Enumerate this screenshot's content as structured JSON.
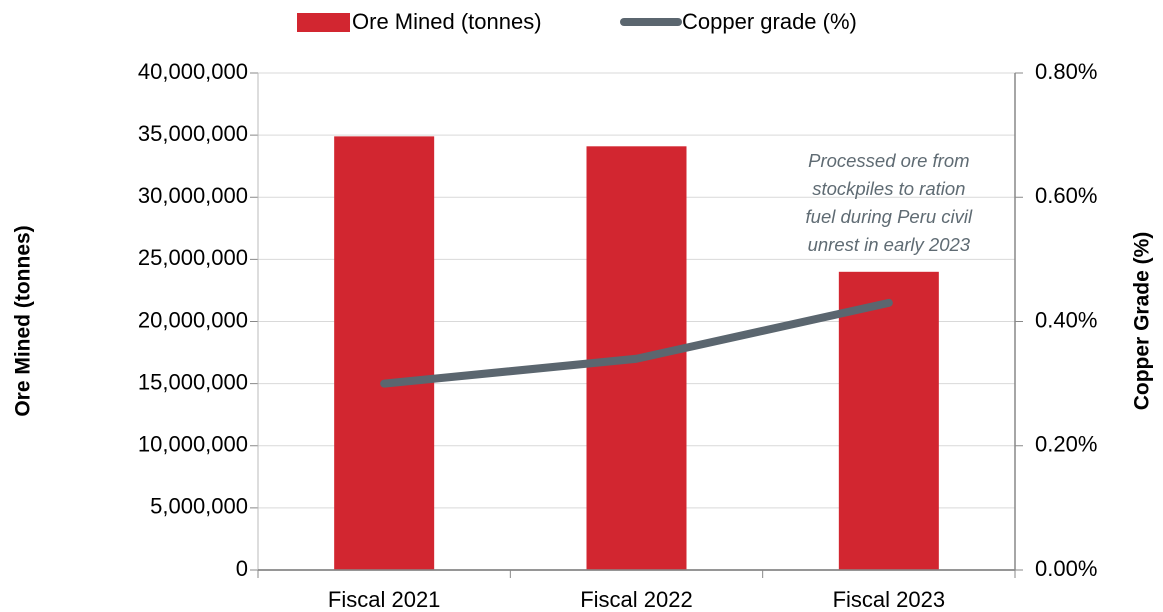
{
  "chart_data": {
    "type": "bar_line",
    "categories": [
      "Fiscal 2021",
      "Fiscal 2022",
      "Fiscal 2023"
    ],
    "series": [
      {
        "name": "Ore Mined (tonnes)",
        "color": "#d22630",
        "type": "bar",
        "values": [
          34900000,
          34100000,
          24000000
        ]
      },
      {
        "name": "Copper grade (%)",
        "color": "#5b666f",
        "type": "line",
        "axis": "y2",
        "values": [
          0.3,
          0.34,
          0.43
        ]
      }
    ],
    "y_label": "Ore Mined (tonnes)",
    "y2_label": "Copper Grade (%)",
    "ylim": [
      0,
      40000000
    ],
    "yticks": [
      0,
      {
        "value": 5000000,
        "label": "5,000,000"
      },
      {
        "value": 10000000,
        "label": "10,000,000"
      },
      {
        "value": 15000000,
        "label": "15,000,000"
      },
      {
        "value": 20000000,
        "label": "20,000,000"
      },
      {
        "value": 25000000,
        "label": "25,000,000"
      },
      {
        "value": 30000000,
        "label": "30,000,000"
      },
      {
        "value": 35000000,
        "label": "35,000,000"
      },
      {
        "value": 40000000,
        "label": "40,000,000"
      }
    ],
    "y2lim": [
      0,
      0.8
    ],
    "y2ticks": [
      {
        "value": 0,
        "label": "0.00%"
      },
      {
        "value": 0.2,
        "label": "0.20%"
      },
      {
        "value": 0.4,
        "label": "0.40%"
      },
      {
        "value": 0.6,
        "label": "0.60%"
      },
      {
        "value": 0.8,
        "label": "0.80%"
      }
    ],
    "annotation": [
      "Processed ore from",
      "stockpiles to ration",
      "fuel during Peru civil",
      "unrest in early 2023"
    ],
    "grid": true,
    "legend": "top"
  }
}
